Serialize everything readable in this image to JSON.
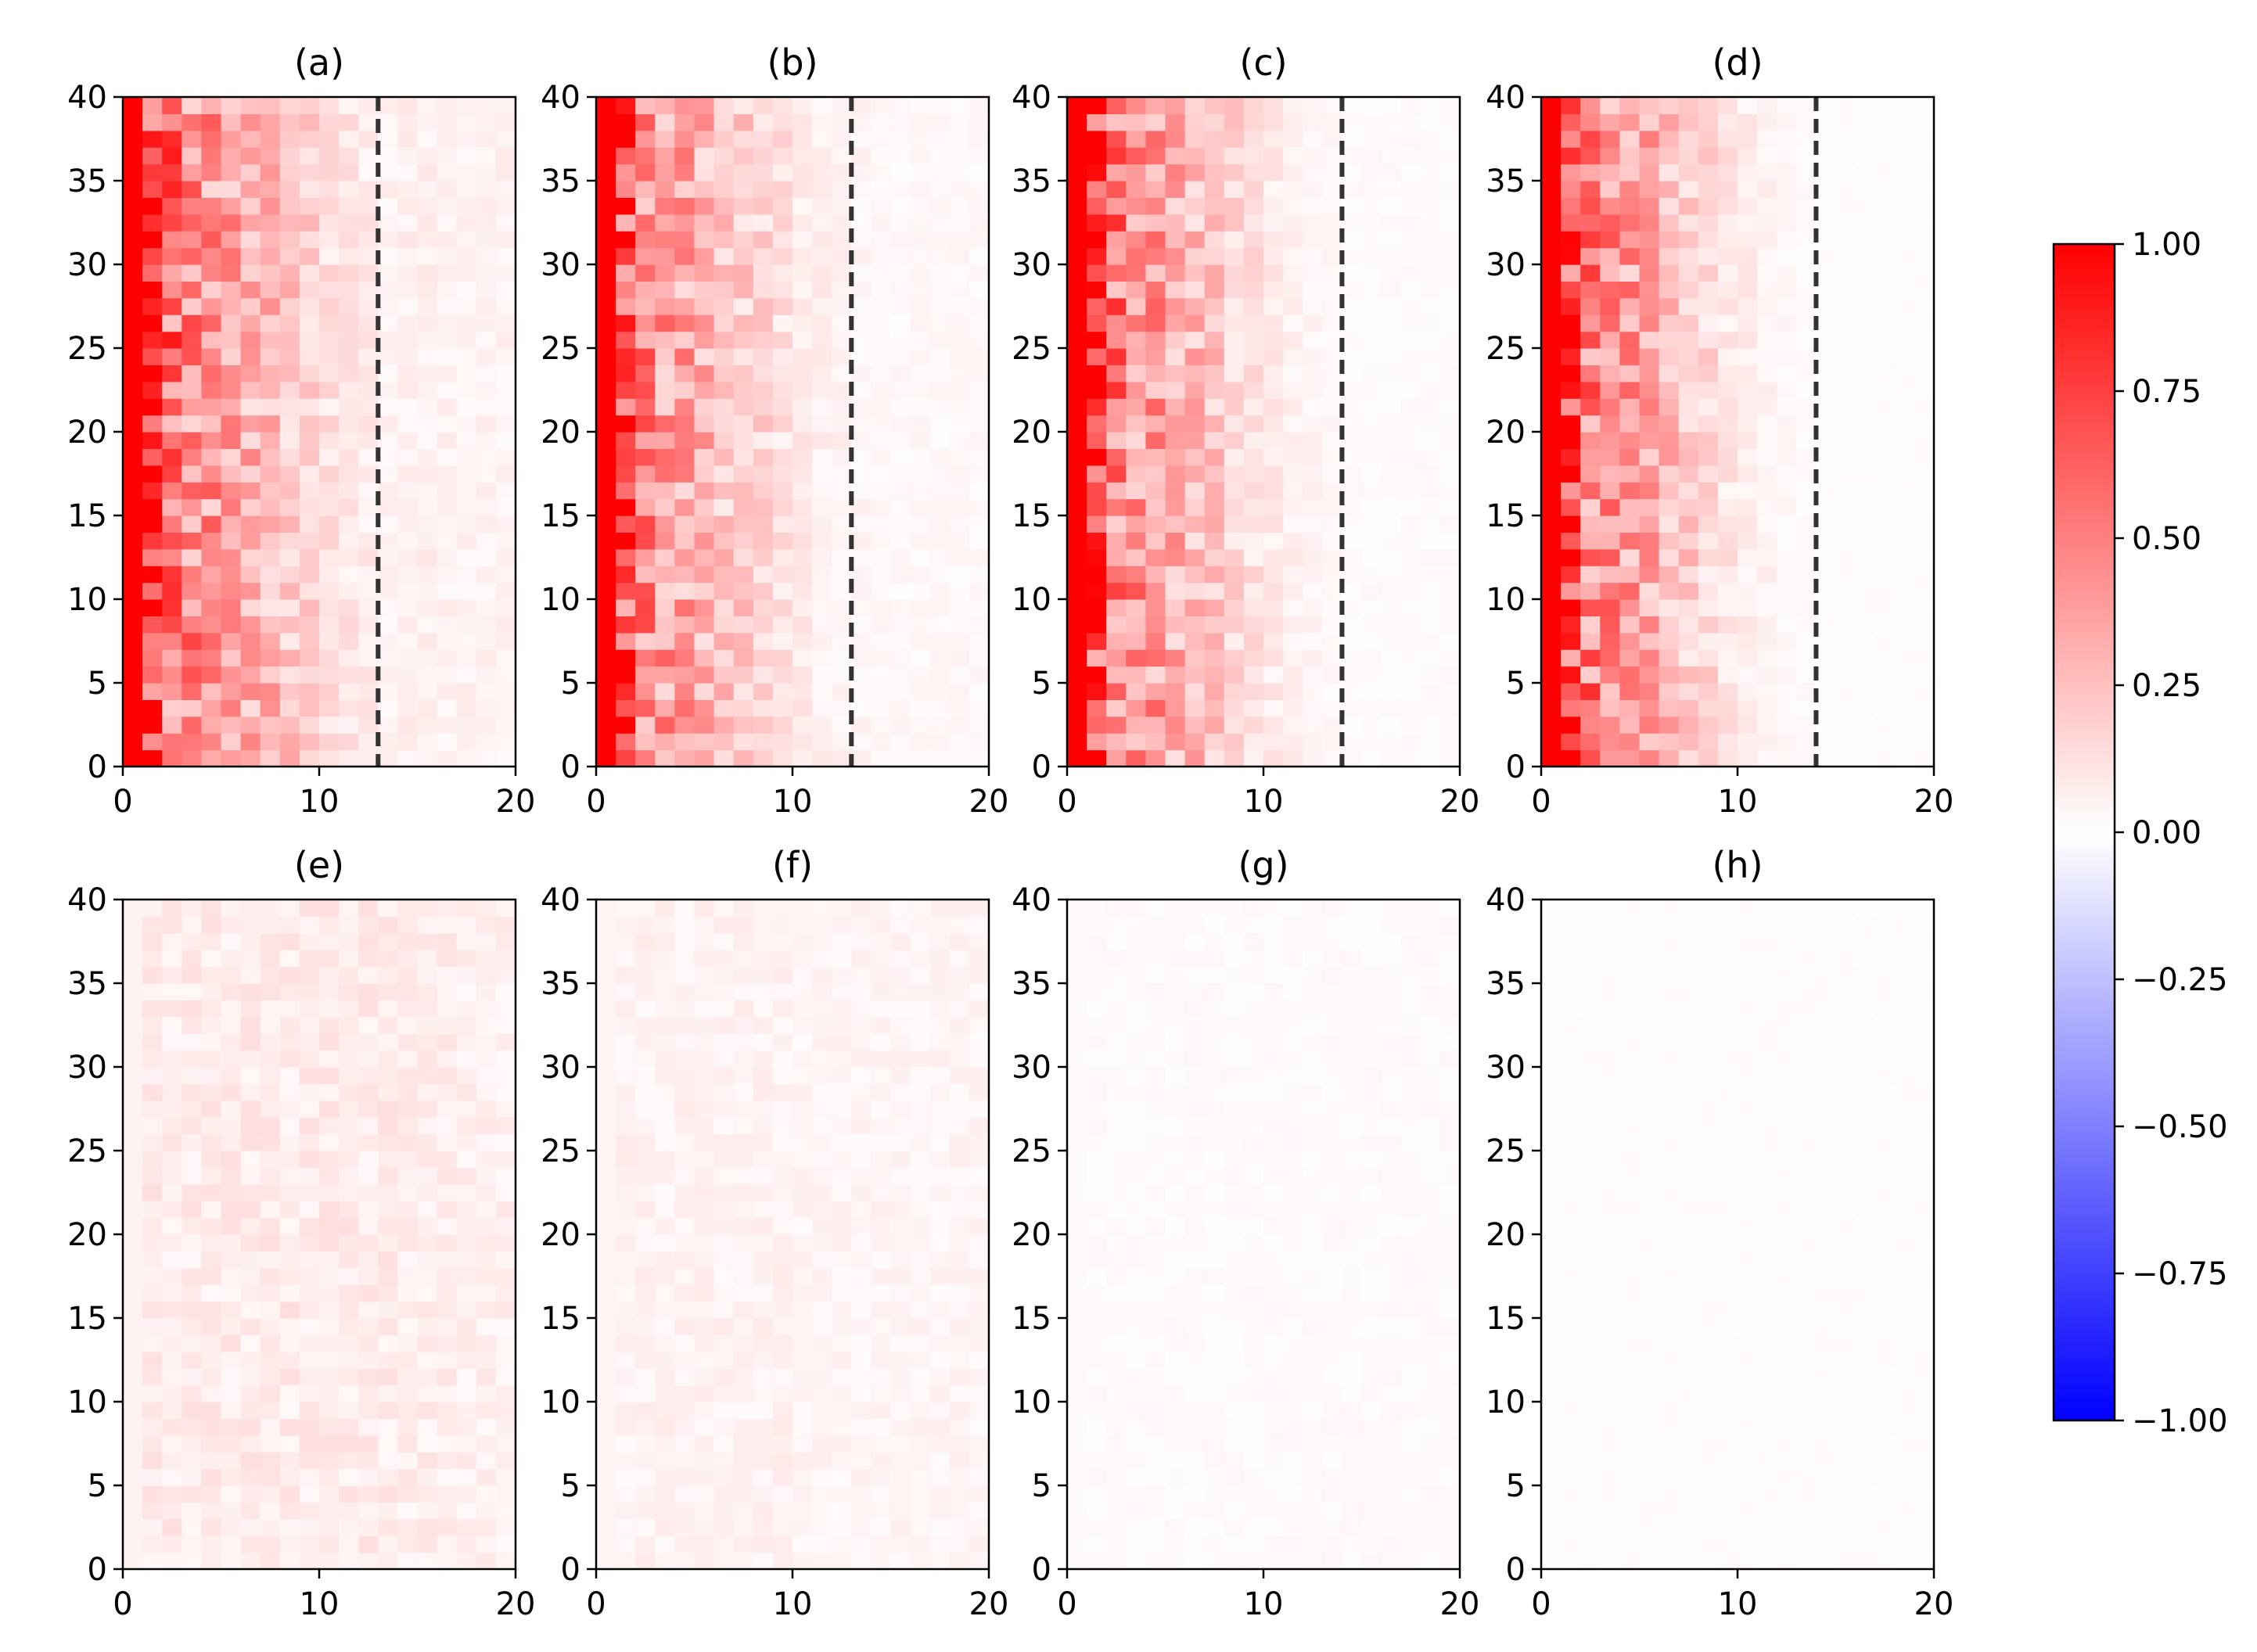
{
  "chart_data": {
    "type": "heatmap",
    "panel_labels": [
      "(a)",
      "(b)",
      "(c)",
      "(d)",
      "(e)",
      "(f)",
      "(g)",
      "(h)"
    ],
    "x_range": [
      0,
      20
    ],
    "y_range": [
      0,
      40
    ],
    "x_ticks": [
      0,
      10,
      20
    ],
    "y_ticks": [
      0,
      5,
      10,
      15,
      20,
      25,
      30,
      35,
      40
    ],
    "dashed_line_x": {
      "(a)": 13,
      "(b)": 13,
      "(c)": 14,
      "(d)": 14
    },
    "colormap": {
      "low": "#0000ff",
      "mid": "#ffffff",
      "high": "#ff0000"
    },
    "colorbar": {
      "range": [
        -1.0,
        1.0
      ],
      "ticks": [
        1.0,
        0.75,
        0.5,
        0.25,
        0.0,
        -0.25,
        -0.5,
        -0.75,
        -1.0
      ],
      "tick_labels": [
        "1.00",
        "0.75",
        "0.50",
        "0.25",
        "0.00",
        "−0.25",
        "−0.50",
        "−0.75",
        "−1.00"
      ]
    },
    "approx_column_profile": {
      "(a)": [
        1.0,
        0.85,
        0.55,
        0.45,
        0.4,
        0.35,
        0.3,
        0.28,
        0.22,
        0.18,
        0.12,
        0.1,
        0.08,
        0.05,
        0.06,
        0.06,
        0.05,
        0.05,
        0.05,
        0.05
      ],
      "(b)": [
        1.0,
        0.8,
        0.45,
        0.38,
        0.35,
        0.3,
        0.22,
        0.2,
        0.16,
        0.12,
        0.08,
        0.06,
        0.05,
        0.04,
        0.03,
        0.03,
        0.03,
        0.03,
        0.03,
        0.03
      ],
      "(c)": [
        1.0,
        0.82,
        0.5,
        0.42,
        0.38,
        0.32,
        0.26,
        0.22,
        0.16,
        0.12,
        0.08,
        0.06,
        0.04,
        0.03,
        0.02,
        0.02,
        0.02,
        0.02,
        0.02,
        0.02
      ],
      "(d)": [
        1.0,
        0.82,
        0.5,
        0.42,
        0.38,
        0.32,
        0.26,
        0.2,
        0.15,
        0.1,
        0.07,
        0.05,
        0.03,
        0.02,
        0.01,
        0.01,
        0.01,
        0.01,
        0.01,
        0.01
      ],
      "(e)": [
        0.05,
        0.08,
        0.08,
        0.08,
        0.08,
        0.08,
        0.08,
        0.08,
        0.08,
        0.08,
        0.08,
        0.08,
        0.08,
        0.08,
        0.07,
        0.07,
        0.07,
        0.06,
        0.06,
        0.06
      ],
      "(f)": [
        0.04,
        0.05,
        0.05,
        0.05,
        0.05,
        0.05,
        0.05,
        0.05,
        0.05,
        0.05,
        0.04,
        0.04,
        0.04,
        0.04,
        0.04,
        0.04,
        0.04,
        0.04,
        0.04,
        0.04
      ],
      "(g)": [
        0.02,
        0.02,
        0.02,
        0.02,
        0.02,
        0.02,
        0.02,
        0.02,
        0.02,
        0.02,
        0.02,
        0.02,
        0.02,
        0.02,
        0.02,
        0.02,
        0.02,
        0.02,
        0.02,
        0.02
      ],
      "(h)": [
        0.01,
        0.01,
        0.01,
        0.01,
        0.01,
        0.01,
        0.01,
        0.01,
        0.01,
        0.01,
        0.01,
        0.01,
        0.01,
        0.01,
        0.01,
        0.01,
        0.01,
        0.01,
        0.01,
        0.01
      ]
    }
  }
}
